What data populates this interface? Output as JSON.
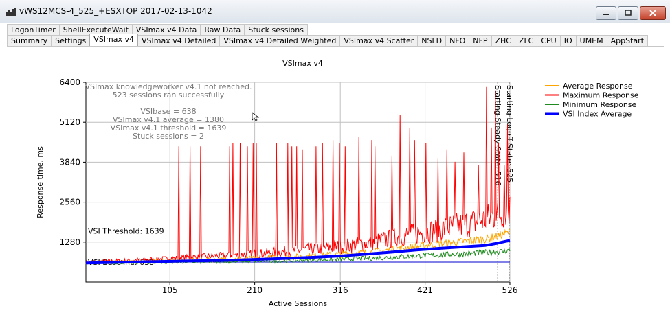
{
  "window": {
    "title": "vWS12MCS-4_525_+ESXTOP 2017-02-13-1042",
    "controls": {
      "minimize": "minimize-icon",
      "maximize": "maximize-icon",
      "close": "close-icon"
    }
  },
  "tabs_row1": [
    "LogonTimer",
    "ShellExecuteWait",
    "VSImax v4 Data",
    "Raw Data",
    "Stuck sessions"
  ],
  "tabs_row2": [
    "Summary",
    "Settings",
    "VSImax v4",
    "VSImax v4 Detailed",
    "VSImax v4 Detailed Weighted",
    "VSImax v4 Scatter",
    "NSLD",
    "NFO",
    "NFP",
    "ZHC",
    "ZLC",
    "CPU",
    "IO",
    "UMEM",
    "AppStart"
  ],
  "active_tab": "VSImax v4",
  "chart_data": {
    "type": "line",
    "title": "VSImax v4",
    "xlabel": "Active Sessions",
    "ylabel": "Response time, ms",
    "x_ticks": [
      105,
      210,
      316,
      421,
      526
    ],
    "y_ticks": [
      1280,
      2560,
      3840,
      5120,
      6400
    ],
    "xlim": [
      1,
      526
    ],
    "ylim": [
      0,
      6400
    ],
    "grid": true,
    "legend_position": "top-right",
    "series": [
      {
        "name": "Average Response",
        "color": "#ffa500",
        "points": [
          [
            1,
            620
          ],
          [
            60,
            650
          ],
          [
            120,
            690
          ],
          [
            180,
            730
          ],
          [
            230,
            780
          ],
          [
            280,
            840
          ],
          [
            320,
            900
          ],
          [
            360,
            980
          ],
          [
            390,
            1080
          ],
          [
            420,
            1170
          ],
          [
            450,
            1250
          ],
          [
            480,
            1330
          ],
          [
            500,
            1400
          ],
          [
            515,
            1500
          ],
          [
            526,
            1600
          ]
        ]
      },
      {
        "name": "Maximum Response",
        "color": "#ff0000",
        "baseline": [
          [
            1,
            640
          ],
          [
            60,
            700
          ],
          [
            120,
            780
          ],
          [
            180,
            860
          ],
          [
            230,
            940
          ],
          [
            280,
            1050
          ],
          [
            320,
            1150
          ],
          [
            360,
            1280
          ],
          [
            390,
            1450
          ],
          [
            420,
            1600
          ],
          [
            450,
            1750
          ],
          [
            480,
            1900
          ],
          [
            500,
            2050
          ],
          [
            515,
            2200
          ],
          [
            526,
            2350
          ]
        ],
        "spikes": [
          [
            116,
            4350
          ],
          [
            130,
            4350
          ],
          [
            143,
            4350
          ],
          [
            179,
            4350
          ],
          [
            183,
            4450
          ],
          [
            192,
            4450
          ],
          [
            201,
            4350
          ],
          [
            208,
            4450
          ],
          [
            212,
            4450
          ],
          [
            237,
            4450
          ],
          [
            251,
            4450
          ],
          [
            256,
            4350
          ],
          [
            262,
            4350
          ],
          [
            269,
            4250
          ],
          [
            286,
            4350
          ],
          [
            294,
            4450
          ],
          [
            307,
            4550
          ],
          [
            315,
            4450
          ],
          [
            322,
            4350
          ],
          [
            339,
            4650
          ],
          [
            355,
            4550
          ],
          [
            359,
            4350
          ],
          [
            380,
            4050
          ],
          [
            390,
            5350
          ],
          [
            402,
            4950
          ],
          [
            408,
            4550
          ],
          [
            422,
            4450
          ],
          [
            437,
            3950
          ],
          [
            448,
            4250
          ],
          [
            458,
            3850
          ],
          [
            469,
            4150
          ],
          [
            487,
            3750
          ],
          [
            497,
            6250
          ],
          [
            503,
            4950
          ],
          [
            508,
            6150
          ],
          [
            512,
            4450
          ],
          [
            519,
            3750
          ],
          [
            523,
            5050
          ]
        ]
      },
      {
        "name": "Minimum Response",
        "color": "#1f8b1f",
        "points": [
          [
            1,
            600
          ],
          [
            60,
            610
          ],
          [
            120,
            630
          ],
          [
            180,
            650
          ],
          [
            230,
            670
          ],
          [
            280,
            700
          ],
          [
            320,
            730
          ],
          [
            360,
            770
          ],
          [
            390,
            810
          ],
          [
            420,
            850
          ],
          [
            450,
            880
          ],
          [
            480,
            920
          ],
          [
            500,
            950
          ],
          [
            515,
            980
          ],
          [
            526,
            1020
          ]
        ]
      },
      {
        "name": "VSI Index Average",
        "color": "#0000ff",
        "points": [
          [
            1,
            610
          ],
          [
            60,
            640
          ],
          [
            120,
            670
          ],
          [
            180,
            700
          ],
          [
            230,
            740
          ],
          [
            280,
            790
          ],
          [
            320,
            840
          ],
          [
            350,
            900
          ],
          [
            380,
            960
          ],
          [
            410,
            1030
          ],
          [
            440,
            1080
          ],
          [
            470,
            1130
          ],
          [
            495,
            1170
          ],
          [
            510,
            1240
          ],
          [
            520,
            1300
          ],
          [
            526,
            1330
          ]
        ]
      }
    ],
    "reference_lines": [
      {
        "label": "VSI Threshold: 1639",
        "value": 1639,
        "color": "#cc0000"
      },
      {
        "label": "VSI Baseline: 638",
        "value": 638,
        "color": "#0000cc"
      }
    ],
    "vertical_markers": [
      {
        "label": "Starting Steady State: 516",
        "x": 516
      },
      {
        "label": "Starting Logoff State: 525",
        "x": 525
      }
    ],
    "annotation_lines": [
      "VSImax knowledgeworker v4.1 not reached.",
      "523 sessions ran successfully",
      "",
      "VSIbase = 638",
      "VSImax v4.1 average = 1380",
      "VSImax v4.1 threshold = 1639",
      "Stuck sessions = 2"
    ]
  }
}
